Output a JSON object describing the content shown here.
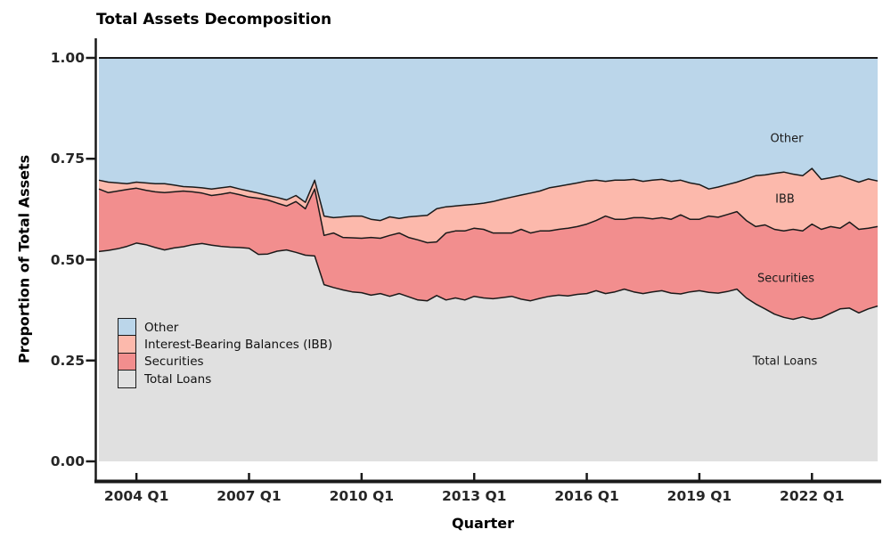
{
  "title": "Total Assets Decomposition",
  "x_axis": {
    "label": "Quarter",
    "ticks": [
      "2004 Q1",
      "2007 Q1",
      "2010 Q1",
      "2013 Q1",
      "2016 Q1",
      "2019 Q1",
      "2022 Q1"
    ]
  },
  "y_axis": {
    "label": "Proportion of Total Assets",
    "ticks": [
      {
        "label": "1.00",
        "value": 1.0
      },
      {
        "label": "0.75",
        "value": 0.75
      },
      {
        "label": "0.50",
        "value": 0.5
      },
      {
        "label": "0.25",
        "value": 0.25
      },
      {
        "label": "0.00",
        "value": 0.0
      }
    ]
  },
  "legend": [
    {
      "label": "Other",
      "color": "#BBD6EA"
    },
    {
      "label": "Interest-Bearing Balances (IBB)",
      "color": "#FCB9AC"
    },
    {
      "label": "Securities",
      "color": "#F28E8E"
    },
    {
      "label": "Total Loans",
      "color": "#E0E0E0"
    }
  ],
  "area_labels": {
    "other": "Other",
    "ibb": "IBB",
    "securities": "Securities",
    "loans": "Total Loans"
  },
  "colors": {
    "other": "#BBD6EA",
    "ibb": "#FCB9AC",
    "securities": "#F28E8E",
    "loans": "#E0E0E0",
    "line": "#1a1a1a",
    "axis": "#1a1a1a"
  },
  "chart_data": {
    "type": "area",
    "stacked": true,
    "normalized": true,
    "title": "Total Assets Decomposition",
    "xlabel": "Quarter",
    "ylabel": "Proportion of Total Assets",
    "ylim": [
      0,
      1
    ],
    "grid": false,
    "legend_position": "inside-left",
    "x": [
      "2003 Q1",
      "2003 Q2",
      "2003 Q3",
      "2003 Q4",
      "2004 Q1",
      "2004 Q2",
      "2004 Q3",
      "2004 Q4",
      "2005 Q1",
      "2005 Q2",
      "2005 Q3",
      "2005 Q4",
      "2006 Q1",
      "2006 Q2",
      "2006 Q3",
      "2006 Q4",
      "2007 Q1",
      "2007 Q2",
      "2007 Q3",
      "2007 Q4",
      "2008 Q1",
      "2008 Q2",
      "2008 Q3",
      "2008 Q4",
      "2009 Q1",
      "2009 Q2",
      "2009 Q3",
      "2009 Q4",
      "2010 Q1",
      "2010 Q2",
      "2010 Q3",
      "2010 Q4",
      "2011 Q1",
      "2011 Q2",
      "2011 Q3",
      "2011 Q4",
      "2012 Q1",
      "2012 Q2",
      "2012 Q3",
      "2012 Q4",
      "2013 Q1",
      "2013 Q2",
      "2013 Q3",
      "2013 Q4",
      "2014 Q1",
      "2014 Q2",
      "2014 Q3",
      "2014 Q4",
      "2015 Q1",
      "2015 Q2",
      "2015 Q3",
      "2015 Q4",
      "2016 Q1",
      "2016 Q2",
      "2016 Q3",
      "2016 Q4",
      "2017 Q1",
      "2017 Q2",
      "2017 Q3",
      "2017 Q4",
      "2018 Q1",
      "2018 Q2",
      "2018 Q3",
      "2018 Q4",
      "2019 Q1",
      "2019 Q2",
      "2019 Q3",
      "2019 Q4",
      "2020 Q1",
      "2020 Q2",
      "2020 Q3",
      "2020 Q4",
      "2021 Q1",
      "2021 Q2",
      "2021 Q3",
      "2021 Q4",
      "2022 Q1",
      "2022 Q2",
      "2022 Q3",
      "2022 Q4",
      "2023 Q1",
      "2023 Q2",
      "2023 Q3",
      "2023 Q4"
    ],
    "series": [
      {
        "name": "Total Loans",
        "values": [
          0.52,
          0.523,
          0.527,
          0.533,
          0.541,
          0.537,
          0.53,
          0.524,
          0.529,
          0.532,
          0.537,
          0.54,
          0.536,
          0.533,
          0.531,
          0.53,
          0.528,
          0.513,
          0.514,
          0.521,
          0.524,
          0.518,
          0.511,
          0.509,
          0.438,
          0.431,
          0.425,
          0.42,
          0.418,
          0.412,
          0.416,
          0.409,
          0.416,
          0.408,
          0.4,
          0.398,
          0.411,
          0.4,
          0.405,
          0.4,
          0.409,
          0.405,
          0.403,
          0.406,
          0.409,
          0.402,
          0.398,
          0.404,
          0.409,
          0.412,
          0.41,
          0.414,
          0.416,
          0.423,
          0.416,
          0.42,
          0.427,
          0.42,
          0.416,
          0.42,
          0.423,
          0.417,
          0.415,
          0.42,
          0.423,
          0.419,
          0.417,
          0.421,
          0.427,
          0.405,
          0.39,
          0.378,
          0.365,
          0.357,
          0.352,
          0.358,
          0.352,
          0.356,
          0.367,
          0.378,
          0.38,
          0.368,
          0.378,
          0.385
        ]
      },
      {
        "name": "Securities",
        "values": [
          0.155,
          0.143,
          0.143,
          0.141,
          0.136,
          0.135,
          0.138,
          0.142,
          0.139,
          0.138,
          0.131,
          0.125,
          0.123,
          0.129,
          0.135,
          0.131,
          0.127,
          0.139,
          0.134,
          0.119,
          0.109,
          0.126,
          0.115,
          0.166,
          0.122,
          0.135,
          0.13,
          0.134,
          0.135,
          0.143,
          0.137,
          0.151,
          0.15,
          0.147,
          0.149,
          0.144,
          0.133,
          0.166,
          0.166,
          0.171,
          0.169,
          0.17,
          0.163,
          0.16,
          0.157,
          0.173,
          0.168,
          0.167,
          0.162,
          0.163,
          0.168,
          0.168,
          0.172,
          0.174,
          0.192,
          0.18,
          0.173,
          0.184,
          0.188,
          0.181,
          0.181,
          0.183,
          0.196,
          0.18,
          0.177,
          0.189,
          0.188,
          0.191,
          0.192,
          0.192,
          0.192,
          0.208,
          0.21,
          0.214,
          0.223,
          0.213,
          0.236,
          0.219,
          0.215,
          0.2,
          0.213,
          0.207,
          0.2,
          0.197
        ]
      },
      {
        "name": "Interest-Bearing Balances (IBB)",
        "values": [
          0.022,
          0.026,
          0.02,
          0.014,
          0.015,
          0.018,
          0.02,
          0.022,
          0.017,
          0.011,
          0.012,
          0.013,
          0.016,
          0.016,
          0.015,
          0.014,
          0.015,
          0.013,
          0.011,
          0.014,
          0.015,
          0.015,
          0.016,
          0.022,
          0.048,
          0.038,
          0.051,
          0.054,
          0.055,
          0.045,
          0.044,
          0.046,
          0.036,
          0.051,
          0.059,
          0.068,
          0.082,
          0.065,
          0.062,
          0.064,
          0.059,
          0.065,
          0.078,
          0.084,
          0.089,
          0.085,
          0.099,
          0.099,
          0.107,
          0.107,
          0.108,
          0.108,
          0.107,
          0.1,
          0.086,
          0.097,
          0.097,
          0.095,
          0.09,
          0.096,
          0.095,
          0.094,
          0.086,
          0.09,
          0.086,
          0.067,
          0.075,
          0.074,
          0.073,
          0.103,
          0.126,
          0.124,
          0.139,
          0.146,
          0.137,
          0.137,
          0.138,
          0.124,
          0.121,
          0.13,
          0.107,
          0.117,
          0.122,
          0.113
        ]
      },
      {
        "name": "Other",
        "values": [
          0.303,
          0.308,
          0.31,
          0.312,
          0.308,
          0.31,
          0.312,
          0.312,
          0.315,
          0.319,
          0.32,
          0.322,
          0.325,
          0.322,
          0.319,
          0.325,
          0.33,
          0.335,
          0.341,
          0.346,
          0.352,
          0.341,
          0.358,
          0.303,
          0.392,
          0.396,
          0.394,
          0.392,
          0.392,
          0.4,
          0.403,
          0.394,
          0.398,
          0.394,
          0.392,
          0.39,
          0.374,
          0.369,
          0.367,
          0.365,
          0.363,
          0.36,
          0.356,
          0.35,
          0.345,
          0.34,
          0.335,
          0.33,
          0.322,
          0.318,
          0.314,
          0.31,
          0.305,
          0.303,
          0.306,
          0.303,
          0.303,
          0.301,
          0.306,
          0.303,
          0.301,
          0.306,
          0.303,
          0.31,
          0.314,
          0.325,
          0.32,
          0.314,
          0.308,
          0.3,
          0.292,
          0.29,
          0.286,
          0.283,
          0.288,
          0.292,
          0.274,
          0.301,
          0.297,
          0.292,
          0.3,
          0.308,
          0.3,
          0.305
        ]
      }
    ]
  }
}
